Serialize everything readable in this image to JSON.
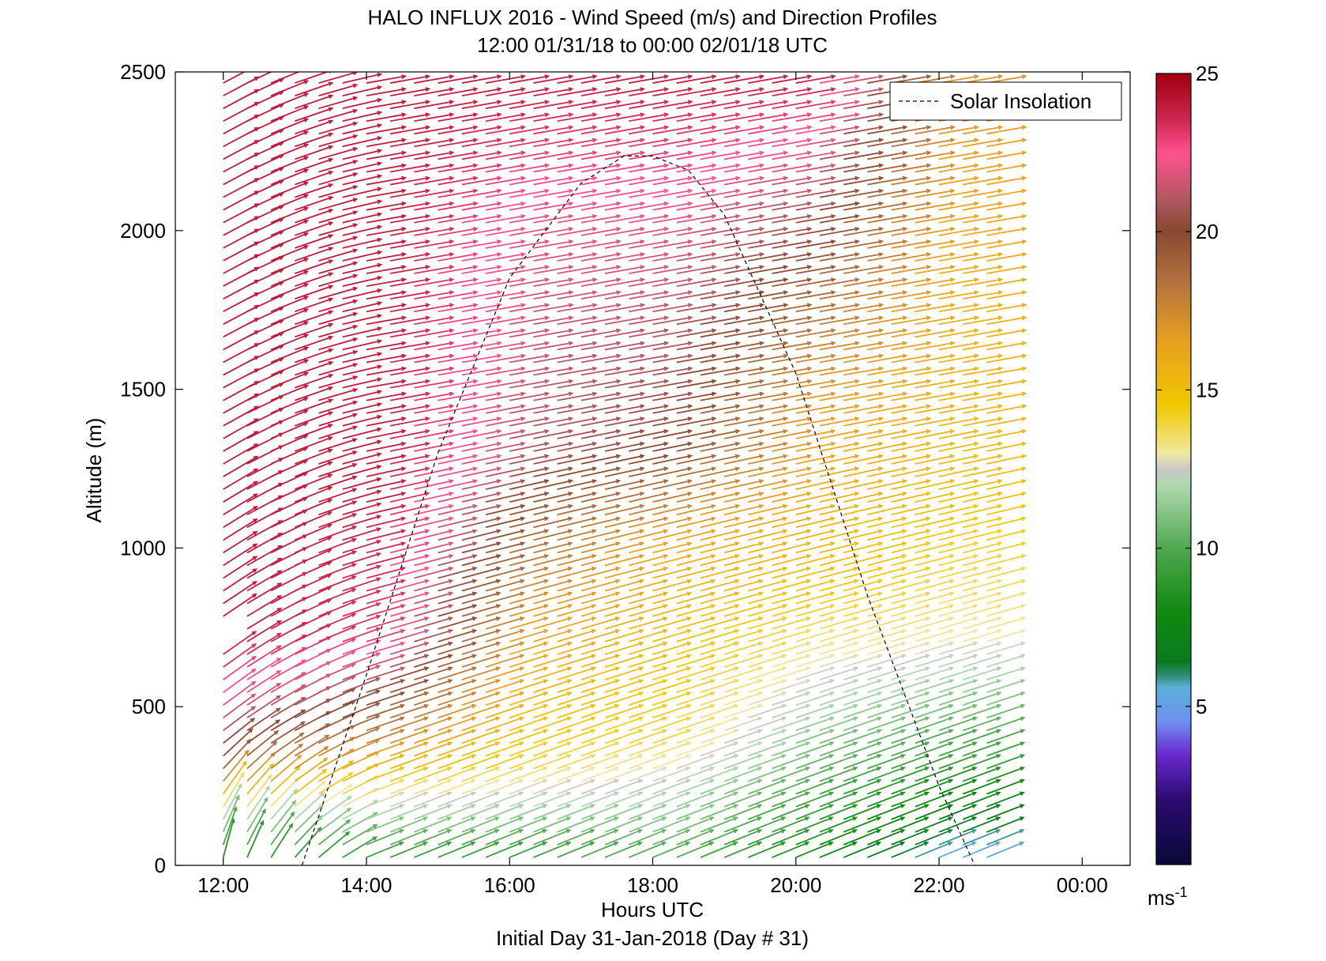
{
  "chart_data": {
    "type": "quiver",
    "title": "HALO INFLUX 2016 - Wind Speed (m/s) and Direction Profiles",
    "subtitle": "12:00 01/31/18 to 00:00 02/01/18  UTC",
    "xlabel": "Hours UTC",
    "xlabel_sub": "Initial Day 31-Jan-2018 (Day # 31)",
    "ylabel": "Altitude (m)",
    "xlim": [
      11.33,
      24.67
    ],
    "ylim": [
      0,
      2500
    ],
    "x_tick_values": [
      12,
      14,
      16,
      18,
      20,
      22,
      24
    ],
    "x_tick_labels": [
      "12:00",
      "14:00",
      "16:00",
      "18:00",
      "20:00",
      "22:00",
      "00:00"
    ],
    "y_tick_values": [
      0,
      500,
      1000,
      1500,
      2000,
      2500
    ],
    "y_tick_labels": [
      "0",
      "500",
      "1000",
      "1500",
      "2000",
      "2500"
    ],
    "grid": false,
    "legend": {
      "position": "top-right",
      "entries": [
        "Solar Insolation"
      ]
    },
    "colorbar": {
      "label": "ms-1",
      "range": [
        0,
        25
      ],
      "tick_values": [
        5,
        10,
        15,
        20,
        25
      ],
      "tick_labels": [
        "5",
        "10",
        "15",
        "20",
        "25"
      ],
      "stops": [
        {
          "v": 0,
          "c": "#0a0a3a"
        },
        {
          "v": 2,
          "c": "#2a0a6e"
        },
        {
          "v": 3.5,
          "c": "#6a2ad0"
        },
        {
          "v": 4.5,
          "c": "#6f8ff0"
        },
        {
          "v": 5.6,
          "c": "#5ab0d8"
        },
        {
          "v": 6,
          "c": "#2a8a70"
        },
        {
          "v": 6.4,
          "c": "#0a7a20"
        },
        {
          "v": 8,
          "c": "#108a10"
        },
        {
          "v": 10,
          "c": "#50a850"
        },
        {
          "v": 12,
          "c": "#b0d8b0"
        },
        {
          "v": 12.5,
          "c": "#c8c8c8"
        },
        {
          "v": 13,
          "c": "#f0e8a0"
        },
        {
          "v": 14.5,
          "c": "#f0c800"
        },
        {
          "v": 16.5,
          "c": "#e8a020"
        },
        {
          "v": 18.5,
          "c": "#b07040"
        },
        {
          "v": 20,
          "c": "#884830"
        },
        {
          "v": 21,
          "c": "#b05860"
        },
        {
          "v": 22.5,
          "c": "#ff5090"
        },
        {
          "v": 23.5,
          "c": "#d02850"
        },
        {
          "v": 25,
          "c": "#a00010"
        }
      ]
    },
    "wind_field": {
      "time_start": 12.0,
      "time_end": 22.9,
      "time_step_minutes": 20,
      "altitude_start_m": 25,
      "altitude_top_m": 2480,
      "altitude_step_m": 40,
      "speed_ms_by_time": [
        {
          "t": 12,
          "profile": [
            [
              0,
              8
            ],
            [
              150,
              12
            ],
            [
              300,
              19
            ],
            [
              500,
              22
            ],
            [
              700,
              24
            ],
            [
              2500,
              24
            ]
          ]
        },
        {
          "t": 14,
          "profile": [
            [
              0,
              9
            ],
            [
              200,
              13
            ],
            [
              400,
              18
            ],
            [
              700,
              23
            ],
            [
              1200,
              24
            ],
            [
              2500,
              24
            ]
          ]
        },
        {
          "t": 16,
          "profile": [
            [
              0,
              9
            ],
            [
              300,
              14
            ],
            [
              800,
              17
            ],
            [
              1300,
              21
            ],
            [
              2000,
              22
            ],
            [
              2500,
              24
            ]
          ]
        },
        {
          "t": 18,
          "profile": [
            [
              0,
              10
            ],
            [
              400,
              14
            ],
            [
              1000,
              16
            ],
            [
              1300,
              20
            ],
            [
              2000,
              22
            ],
            [
              2500,
              24
            ]
          ]
        },
        {
          "t": 20,
          "profile": [
            [
              0,
              8
            ],
            [
              500,
              12
            ],
            [
              900,
              15
            ],
            [
              1500,
              17
            ],
            [
              2100,
              21
            ],
            [
              2500,
              24
            ]
          ]
        },
        {
          "t": 22,
          "profile": [
            [
              0,
              5
            ],
            [
              300,
              9
            ],
            [
              700,
              13
            ],
            [
              1200,
              15
            ],
            [
              2000,
              16
            ],
            [
              2500,
              17
            ]
          ]
        }
      ],
      "direction_note_deg": "arrows point east-northeast, steeper near surface, more northward early"
    },
    "solar_insolation": {
      "style": "dashed",
      "color": "#000000",
      "points": [
        [
          13.1,
          0
        ],
        [
          14,
          600
        ],
        [
          15,
          1300
        ],
        [
          16,
          1850
        ],
        [
          17,
          2150
        ],
        [
          17.6,
          2235
        ],
        [
          18,
          2235
        ],
        [
          18.5,
          2190
        ],
        [
          19,
          2050
        ],
        [
          20,
          1550
        ],
        [
          21,
          850
        ],
        [
          22,
          250
        ],
        [
          22.5,
          0
        ]
      ]
    }
  }
}
